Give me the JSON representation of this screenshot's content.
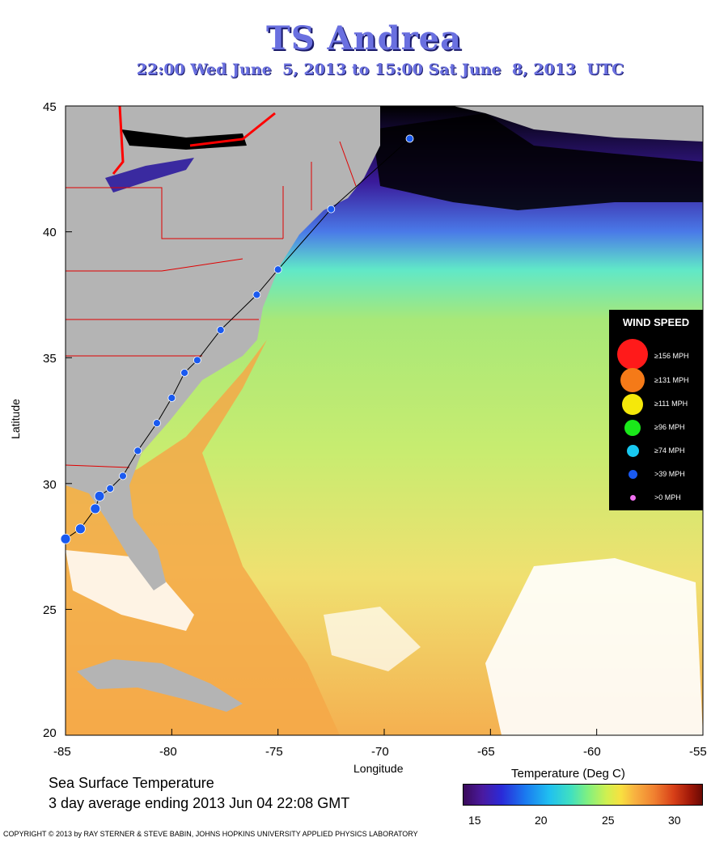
{
  "title": "TS Andrea",
  "subtitle": "22:00 Wed June  5, 2013 to 15:00 Sat June  8, 2013  UTC",
  "map": {
    "x_axis": {
      "label": "Longitude",
      "ticks": [
        "-85",
        "-80",
        "-75",
        "-70",
        "-65",
        "-60",
        "-55"
      ],
      "range": [
        -85,
        -55
      ]
    },
    "y_axis": {
      "label": "Latitude",
      "ticks": [
        "45",
        "40",
        "35",
        "30",
        "25",
        "20"
      ],
      "range": [
        20,
        45
      ]
    },
    "track": {
      "color": "#000000",
      "points": [
        {
          "lon": -85.0,
          "lat": 27.8,
          "size": "large"
        },
        {
          "lon": -84.3,
          "lat": 28.2,
          "size": "large"
        },
        {
          "lon": -83.6,
          "lat": 29.0,
          "size": "large"
        },
        {
          "lon": -83.4,
          "lat": 29.5,
          "size": "large"
        },
        {
          "lon": -82.9,
          "lat": 29.8,
          "size": "small"
        },
        {
          "lon": -82.3,
          "lat": 30.3,
          "size": "small"
        },
        {
          "lon": -81.6,
          "lat": 31.3,
          "size": "small"
        },
        {
          "lon": -80.7,
          "lat": 32.4,
          "size": "small"
        },
        {
          "lon": -80.0,
          "lat": 33.4,
          "size": "small"
        },
        {
          "lon": -79.4,
          "lat": 34.4,
          "size": "small"
        },
        {
          "lon": -78.8,
          "lat": 34.9,
          "size": "small"
        },
        {
          "lon": -77.7,
          "lat": 36.1,
          "size": "small"
        },
        {
          "lon": -76.0,
          "lat": 37.5,
          "size": "small"
        },
        {
          "lon": -75.0,
          "lat": 38.5,
          "size": "small"
        },
        {
          "lon": -72.5,
          "lat": 40.9,
          "size": "small"
        },
        {
          "lon": -68.8,
          "lat": 43.7,
          "size": "small"
        }
      ]
    }
  },
  "legend": {
    "title": "WIND SPEED",
    "items": [
      {
        "label": "≥156 MPH",
        "color": "#ff1a1a"
      },
      {
        "label": "≥131 MPH",
        "color": "#f57a18"
      },
      {
        "label": "≥111 MPH",
        "color": "#f5e80a"
      },
      {
        "label": "≥96 MPH",
        "color": "#1ae81a"
      },
      {
        "label": "≥74 MPH",
        "color": "#18c8f0"
      },
      {
        "label": ">39 MPH",
        "color": "#1a5af0"
      },
      {
        "label": ">0 MPH",
        "color": "#f070f0"
      }
    ]
  },
  "sst": {
    "line1": "Sea Surface Temperature",
    "line2": "3 day average ending 2013 Jun 04 22:08 GMT"
  },
  "colorbar": {
    "title": "Temperature (Deg C)",
    "ticks": [
      "15",
      "20",
      "25",
      "30"
    ],
    "range": [
      13.5,
      32.5
    ]
  },
  "copyright": "COPYRIGHT © 2013 by RAY STERNER & STEVE BABIN, JOHNS HOPKINS UNIVERSITY APPLIED PHYSICS LABORATORY"
}
